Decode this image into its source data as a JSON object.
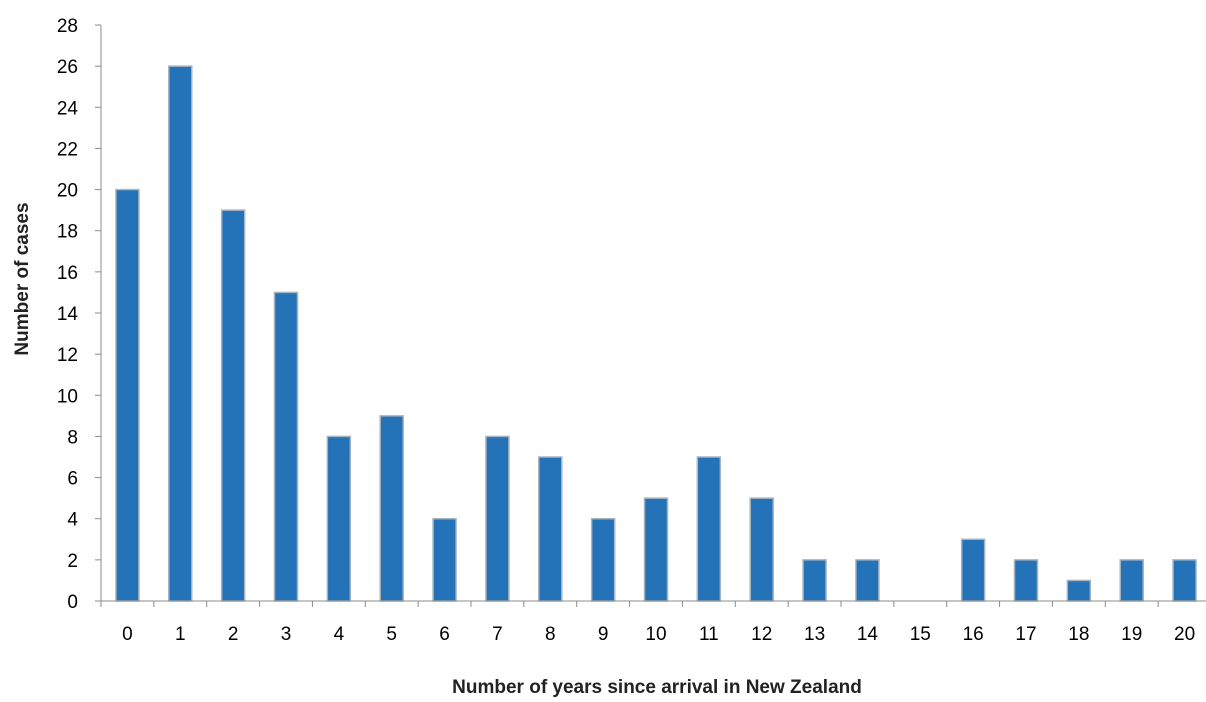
{
  "chart_data": {
    "type": "bar",
    "categories": [
      "0",
      "1",
      "2",
      "3",
      "4",
      "5",
      "6",
      "7",
      "8",
      "9",
      "10",
      "11",
      "12",
      "13",
      "14",
      "15",
      "16",
      "17",
      "18",
      "19",
      "20"
    ],
    "values": [
      20,
      26,
      19,
      15,
      8,
      9,
      4,
      8,
      7,
      4,
      5,
      7,
      5,
      2,
      2,
      0,
      3,
      2,
      1,
      2,
      2
    ],
    "title": "",
    "xlabel": "Number of years since arrival in New Zealand",
    "ylabel": "Number of cases",
    "ylim": [
      0,
      28
    ],
    "yticks": [
      "0",
      "2",
      "4",
      "6",
      "8",
      "10",
      "12",
      "14",
      "16",
      "18",
      "20",
      "22",
      "24",
      "26",
      "28"
    ],
    "grid": false,
    "legend": "none",
    "colors": {
      "bar": "#2472b8",
      "bar_border": "#a8b4c0",
      "axis": "#8c8c8c"
    }
  }
}
